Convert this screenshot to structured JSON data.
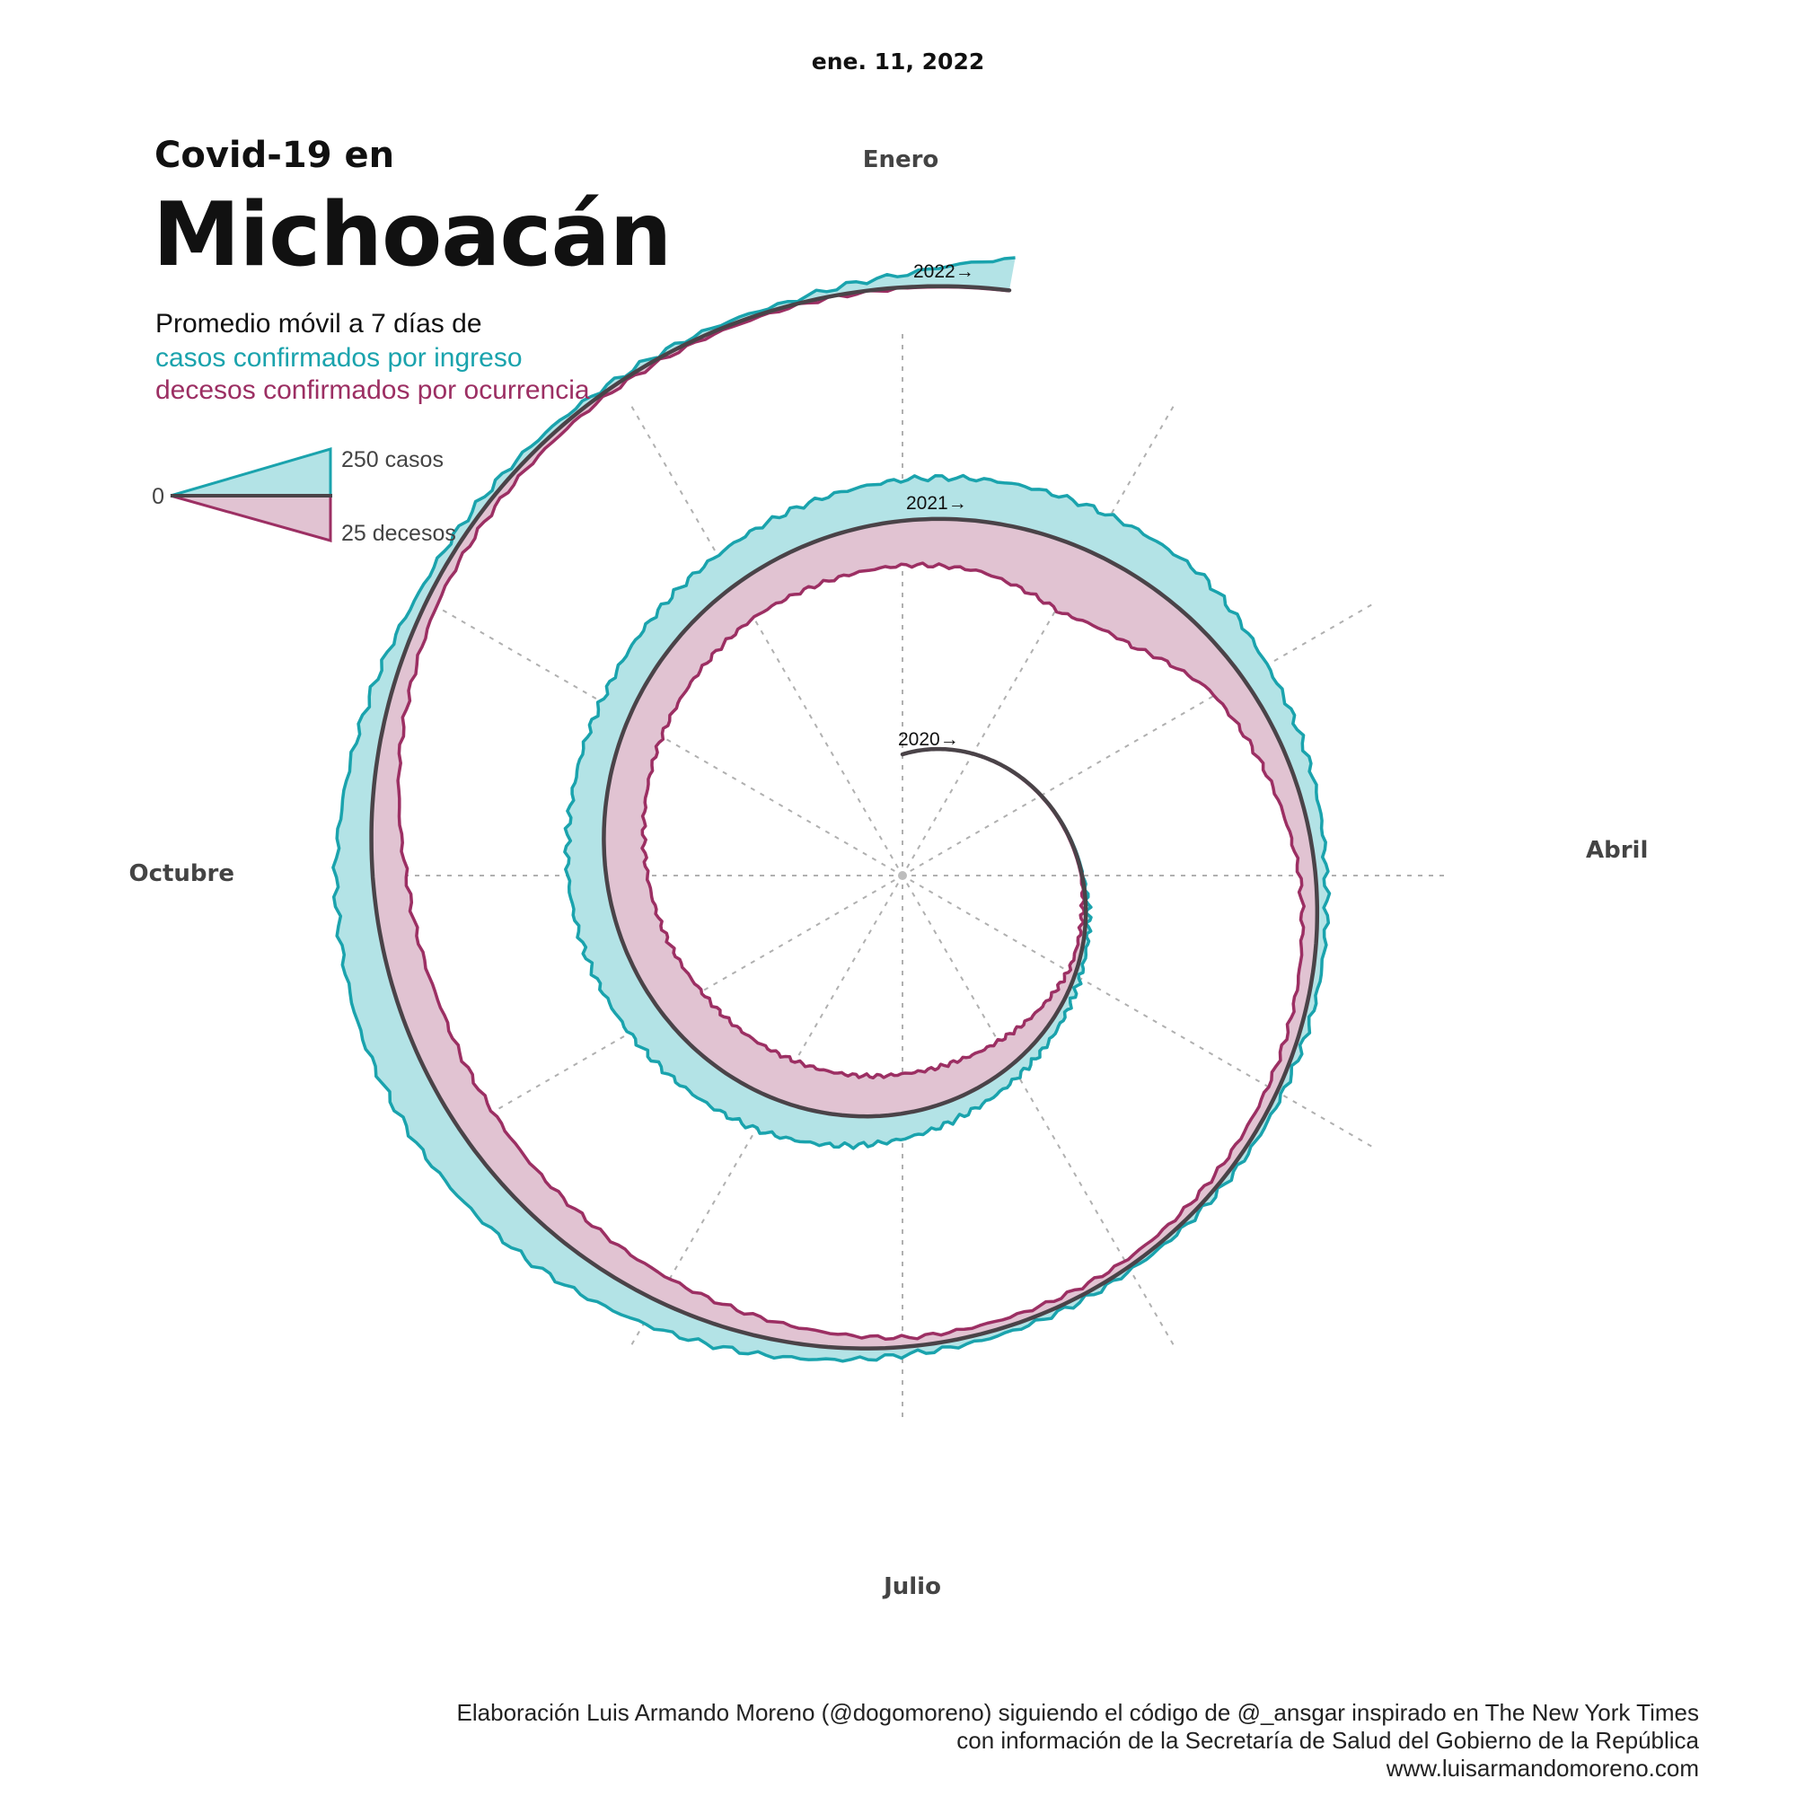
{
  "header": {
    "date": "ene. 11, 2022",
    "supertitle": "Covid-19 en",
    "title": "Michoacán",
    "subtitle_intro": "Promedio móvil a 7 días de",
    "subtitle_cases": "casos confirmados por ingreso",
    "subtitle_deaths": "decesos confirmados por ocurrencia"
  },
  "legend": {
    "zero": "0",
    "cases": "250 casos",
    "deaths": "25 decesos"
  },
  "colors": {
    "cases_fill": "#b3e3e6",
    "cases_line": "#1aa3ad",
    "deaths_fill": "#e1c3d2",
    "deaths_line": "#9c2f63",
    "spiral": "#4a4348",
    "grid": "#b0b0b0"
  },
  "credits": [
    "Elaboración Luis Armando Moreno (@dogomoreno) siguiendo el código de @_ansgar inspirado en The New York Times",
    "con información de la Secretaría de Salud del Gobierno de la República",
    "www.luisarmandomoreno.com"
  ],
  "chart_data": {
    "type": "area",
    "layout": "spiral",
    "start": "2020-01-01",
    "end": "2022-01-11",
    "months": [
      "Enero",
      "Abril",
      "Julio",
      "Octubre"
    ],
    "years": [
      "2020→",
      "2021→",
      "2022→"
    ],
    "scale": {
      "cases_ref": 250,
      "deaths_ref": 25
    },
    "series": [
      {
        "name": "casos confirmados por ingreso",
        "x": [
          "2020-01-01",
          "2020-03-01",
          "2020-04-01",
          "2020-05-01",
          "2020-06-01",
          "2020-06-15",
          "2020-07-01",
          "2020-07-15",
          "2020-08-01",
          "2020-08-15",
          "2020-09-01",
          "2020-09-15",
          "2020-10-01",
          "2020-10-15",
          "2020-11-01",
          "2020-11-15",
          "2020-12-01",
          "2020-12-15",
          "2021-01-01",
          "2021-01-15",
          "2021-02-01",
          "2021-02-15",
          "2021-03-01",
          "2021-04-01",
          "2021-05-01",
          "2021-06-01",
          "2021-07-01",
          "2021-07-15",
          "2021-08-01",
          "2021-08-15",
          "2021-09-01",
          "2021-09-15",
          "2021-10-01",
          "2021-10-15",
          "2021-11-01",
          "2021-12-01",
          "2021-12-20",
          "2022-01-01",
          "2022-01-11"
        ],
        "values": [
          0,
          0,
          5,
          30,
          70,
          95,
          135,
          165,
          190,
          195,
          205,
          210,
          205,
          185,
          170,
          175,
          185,
          205,
          220,
          225,
          220,
          215,
          150,
          55,
          30,
          20,
          40,
          80,
          140,
          195,
          235,
          240,
          200,
          130,
          55,
          20,
          20,
          70,
          170
        ]
      },
      {
        "name": "decesos confirmados por ocurrencia",
        "x": [
          "2020-01-01",
          "2020-04-01",
          "2020-05-01",
          "2020-05-15",
          "2020-06-01",
          "2020-06-15",
          "2020-07-01",
          "2020-07-15",
          "2020-08-01",
          "2020-08-15",
          "2020-09-01",
          "2020-09-15",
          "2020-10-01",
          "2020-10-15",
          "2020-11-01",
          "2020-11-15",
          "2020-12-01",
          "2020-12-15",
          "2021-01-01",
          "2021-01-15",
          "2021-02-01",
          "2021-02-15",
          "2021-03-01",
          "2021-04-01",
          "2021-05-01",
          "2021-06-01",
          "2021-07-01",
          "2021-07-15",
          "2021-08-01",
          "2021-08-15",
          "2021-09-01",
          "2021-09-15",
          "2021-10-01",
          "2021-10-15",
          "2021-11-01",
          "2021-12-01",
          "2022-01-01",
          "2022-01-11"
        ],
        "values": [
          0,
          0.5,
          4,
          9,
          15,
          19,
          22,
          23,
          24,
          24.5,
          25,
          24,
          23,
          22,
          21,
          21,
          21,
          23,
          25,
          28,
          38,
          33,
          19,
          9,
          6,
          4,
          5,
          9,
          14,
          18,
          21,
          22,
          19,
          12,
          6,
          2,
          0.5,
          0.3
        ]
      }
    ],
    "grid": true
  }
}
